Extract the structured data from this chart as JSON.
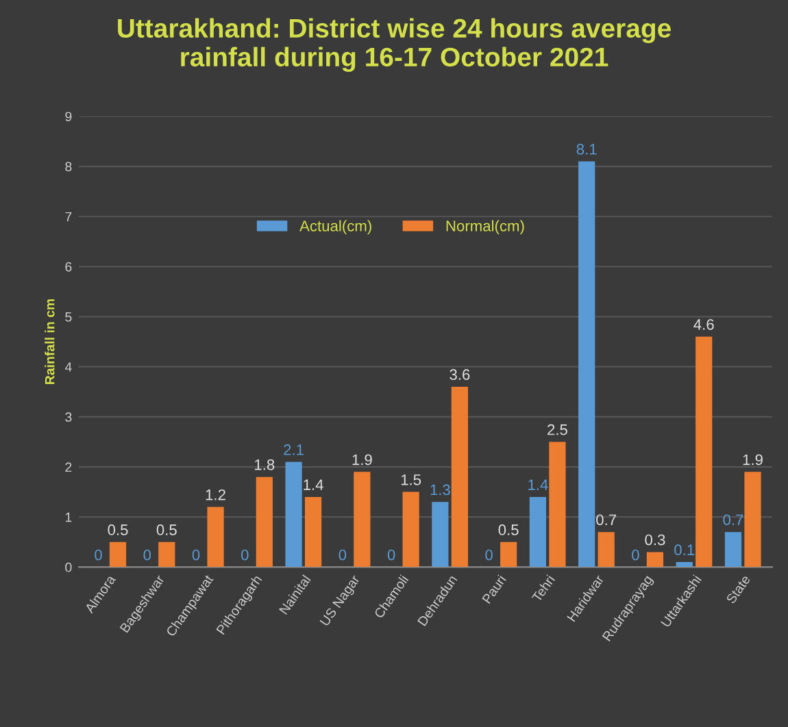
{
  "chart_data": {
    "type": "bar",
    "title": "Uttarakhand: District wise 24 hours average\nrainfall during 16-17 October 2021",
    "ylabel": "Rainfall in cm",
    "categories": [
      "Almora",
      "Bageshwar",
      "Champawat",
      "Pithoragarh",
      "Nainital",
      "US Nagar",
      "Chamoli",
      "Dehradun",
      "Pauri",
      "Tehri",
      "Haridwar",
      "Rudraprayag",
      "Uttarkashi",
      "State"
    ],
    "series": [
      {
        "name": "Actual(cm)",
        "color": "#5b9bd5",
        "values": [
          0,
          0,
          0,
          0,
          2.1,
          0,
          0,
          1.3,
          0,
          1.4,
          8.1,
          0,
          0.1,
          0.7
        ]
      },
      {
        "name": "Normal(cm)",
        "color": "#ed7d31",
        "values": [
          0.5,
          0.5,
          1.2,
          1.8,
          1.4,
          1.9,
          1.5,
          3.6,
          0.5,
          2.5,
          0.7,
          0.3,
          4.6,
          1.9
        ]
      }
    ],
    "ylim": [
      0,
      9
    ],
    "yticks": [
      0,
      1,
      2,
      3,
      4,
      5,
      6,
      7,
      8,
      9
    ],
    "grid": "y",
    "legend": "top",
    "data_labels": true
  }
}
